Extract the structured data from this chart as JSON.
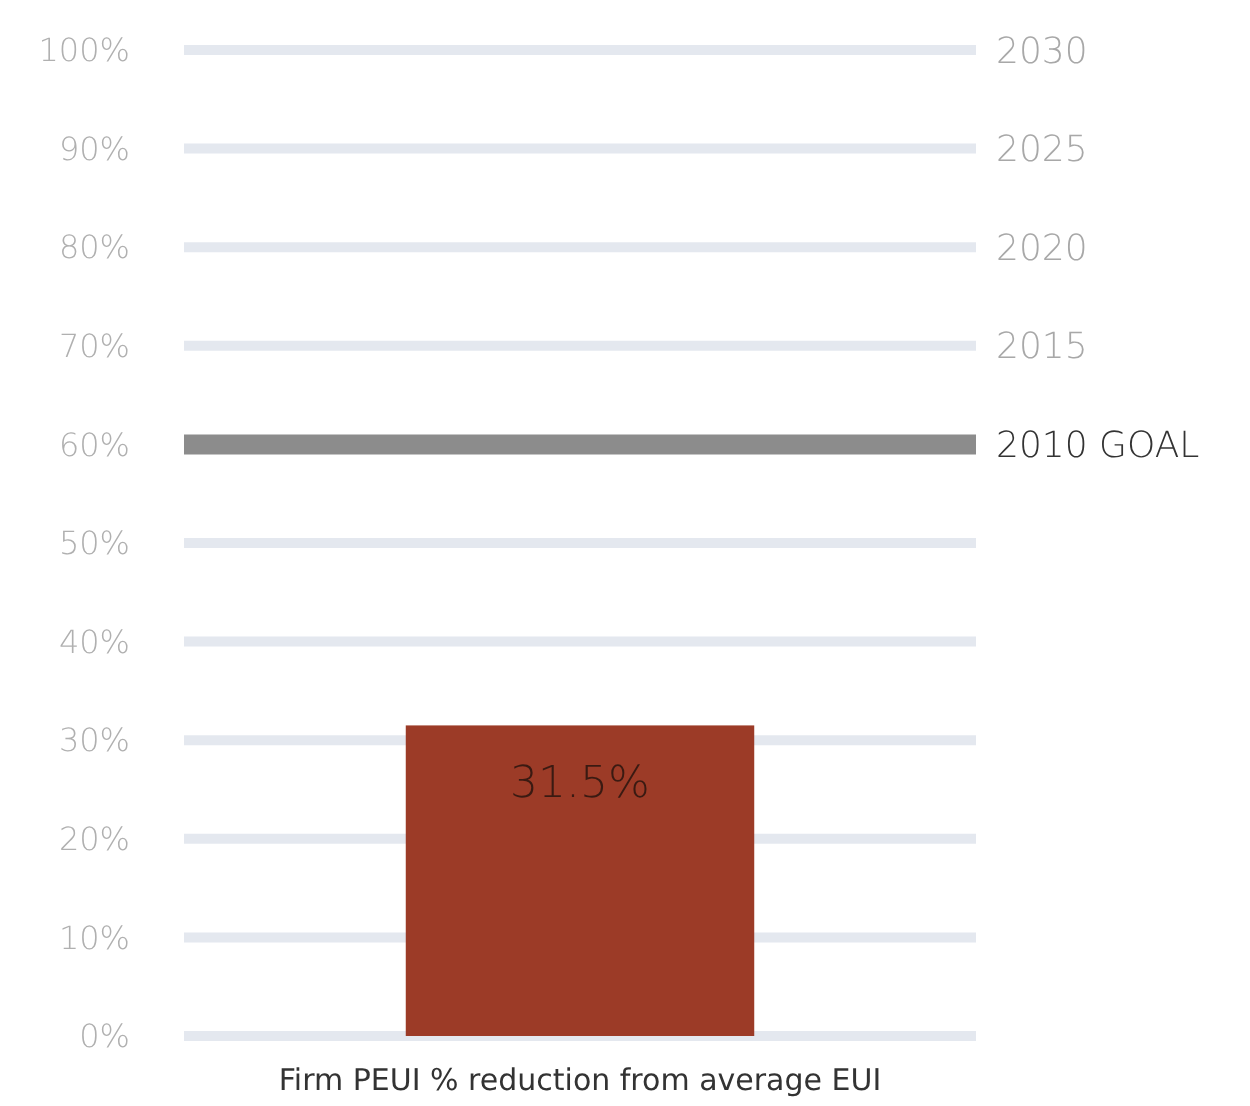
{
  "chart_data": {
    "type": "bar",
    "xlabel": "Firm PEUI % reduction from average EUI",
    "categories": [
      null
    ],
    "values": [
      31.5
    ],
    "value_labels": [
      "31.5%"
    ],
    "color": "#9c3b27",
    "ylim": [
      0,
      100
    ],
    "yticks": [
      {
        "value": 0,
        "label": "0%"
      },
      {
        "value": 10,
        "label": "10%"
      },
      {
        "value": 20,
        "label": "20%"
      },
      {
        "value": 30,
        "label": "30%"
      },
      {
        "value": 40,
        "label": "40%"
      },
      {
        "value": 50,
        "label": "50%"
      },
      {
        "value": 60,
        "label": "60%"
      },
      {
        "value": 70,
        "label": "70%"
      },
      {
        "value": 80,
        "label": "80%"
      },
      {
        "value": 90,
        "label": "90%"
      },
      {
        "value": 100,
        "label": "100%"
      }
    ],
    "y2lim": [
      1980,
      2030
    ],
    "y2ticks": [
      2015,
      2020,
      2025,
      2030
    ],
    "ref_lines": [
      {
        "axis": "y",
        "value": 60,
        "label": "2010 GOAL",
        "color": "#8c8c8c"
      }
    ],
    "grid": "y"
  }
}
